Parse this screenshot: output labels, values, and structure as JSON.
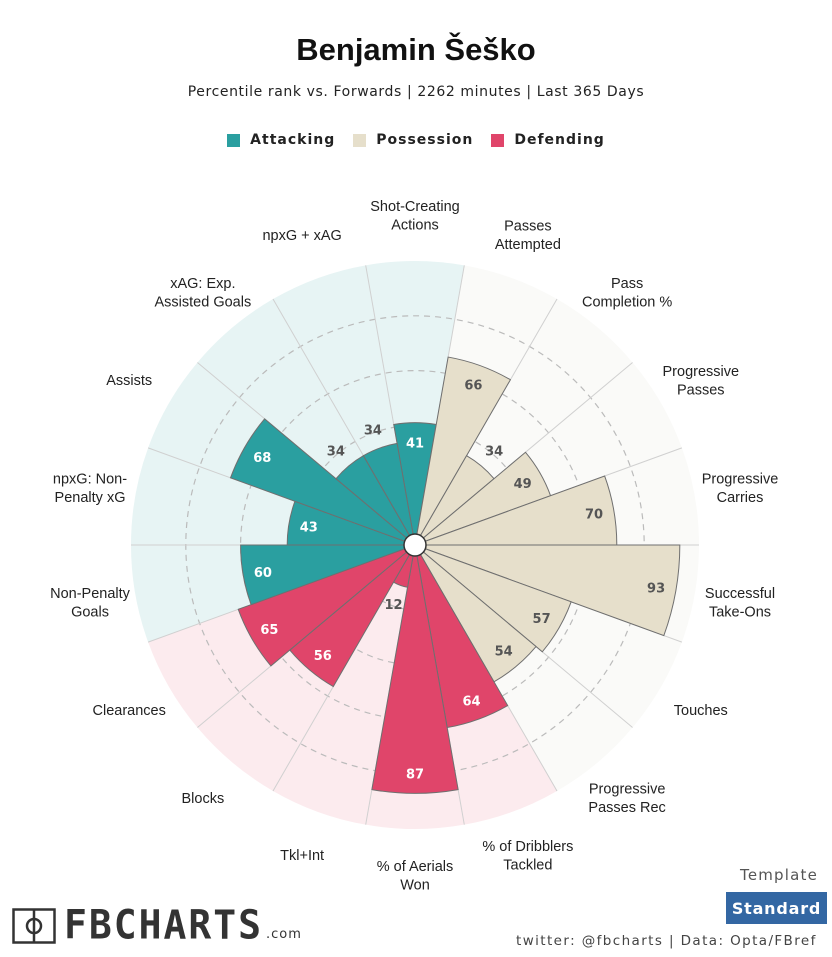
{
  "header": {
    "title": "Benjamin Šeško",
    "subtitle": "Percentile rank vs. Forwards | 2262 minutes | Last 365 Days"
  },
  "legend": [
    {
      "label": "Attacking",
      "color": "#2a9fa0"
    },
    {
      "label": "Possession",
      "color": "#e6dfcb"
    },
    {
      "label": "Defending",
      "color": "#e0456a"
    }
  ],
  "chart_data": {
    "type": "polar-bar",
    "title": "Benjamin Šeško",
    "rlim": [
      0,
      100
    ],
    "grid_levels": [
      20,
      40,
      60,
      80
    ],
    "categories": [
      {
        "label": "Shot-Creating\nActions",
        "value": 41,
        "group": "Attacking"
      },
      {
        "label": "Passes\nAttempted",
        "value": 66,
        "group": "Possession"
      },
      {
        "label": "Pass\nCompletion %",
        "value": 34,
        "group": "Possession"
      },
      {
        "label": "Progressive\nPasses",
        "value": 49,
        "group": "Possession"
      },
      {
        "label": "Progressive\nCarries",
        "value": 70,
        "group": "Possession"
      },
      {
        "label": "Successful\nTake-Ons",
        "value": 93,
        "group": "Possession"
      },
      {
        "label": "Touches",
        "value": 57,
        "group": "Possession"
      },
      {
        "label": "Progressive\nPasses Rec",
        "value": 54,
        "group": "Possession"
      },
      {
        "label": "% of Dribblers\nTackled",
        "value": 64,
        "group": "Defending"
      },
      {
        "label": "% of Aerials\nWon",
        "value": 87,
        "group": "Defending"
      },
      {
        "label": "Tkl+Int",
        "value": 12,
        "group": "Defending"
      },
      {
        "label": "Blocks",
        "value": 56,
        "group": "Defending"
      },
      {
        "label": "Clearances",
        "value": 65,
        "group": "Defending"
      },
      {
        "label": "Non-Penalty\nGoals",
        "value": 60,
        "group": "Attacking"
      },
      {
        "label": "npxG: Non-\nPenalty xG",
        "value": 43,
        "group": "Attacking"
      },
      {
        "label": "Assists",
        "value": 68,
        "group": "Attacking"
      },
      {
        "label": "xAG: Exp.\nAssisted Goals",
        "value": 34,
        "group": "Attacking"
      },
      {
        "label": "npxG + xAG",
        "value": 34,
        "group": "Attacking"
      }
    ],
    "group_colors": {
      "Attacking": {
        "bar": "#2a9fa0",
        "bg": "#e7f4f4",
        "text_in": "#ffffff",
        "text_out": "#555555"
      },
      "Possession": {
        "bar": "#e6dfcb",
        "bg": "#fafaf8",
        "text_in": "#555555",
        "text_out": "#555555"
      },
      "Defending": {
        "bar": "#e0456a",
        "bg": "#fcebee",
        "text_in": "#ffffff",
        "text_out": "#555555"
      }
    }
  },
  "footer": {
    "template_label": "Template",
    "template_value": "Standard",
    "credit": "twitter: @fbcharts | Data: Opta/FBref",
    "logo_text": "FBCHARTS",
    "logo_suffix": ".com"
  }
}
